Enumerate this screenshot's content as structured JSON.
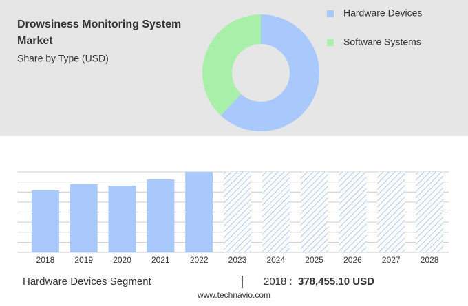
{
  "chart_data": [
    {
      "type": "donut",
      "title": "Drowsiness Monitoring System Market",
      "subtitle": "Share by Type (USD)",
      "categories": [
        "Hardware Devices",
        "Software Systems"
      ],
      "values": [
        62,
        38
      ],
      "colors": [
        "#a9c8fb",
        "#a8f0a9"
      ]
    },
    {
      "type": "bar",
      "categories": [
        "2018",
        "2019",
        "2020",
        "2021",
        "2022",
        "2023",
        "2024",
        "2025",
        "2026",
        "2027",
        "2028"
      ],
      "values": [
        378455.1,
        416300,
        407900,
        445700,
        492000,
        null,
        null,
        null,
        null,
        null,
        null
      ],
      "color": "#a9c8fb",
      "forecast_color": "#a9c8fb",
      "ylim": [
        0,
        492000
      ],
      "yticks": [
        0,
        61500,
        123000,
        184500,
        246000,
        307500,
        369000,
        430500,
        492000
      ],
      "grid": true
    }
  ],
  "footer": {
    "segment": "Hardware Devices Segment",
    "year": "2018 :",
    "value": "378,455.10 USD",
    "source": "www.technavio.com"
  }
}
